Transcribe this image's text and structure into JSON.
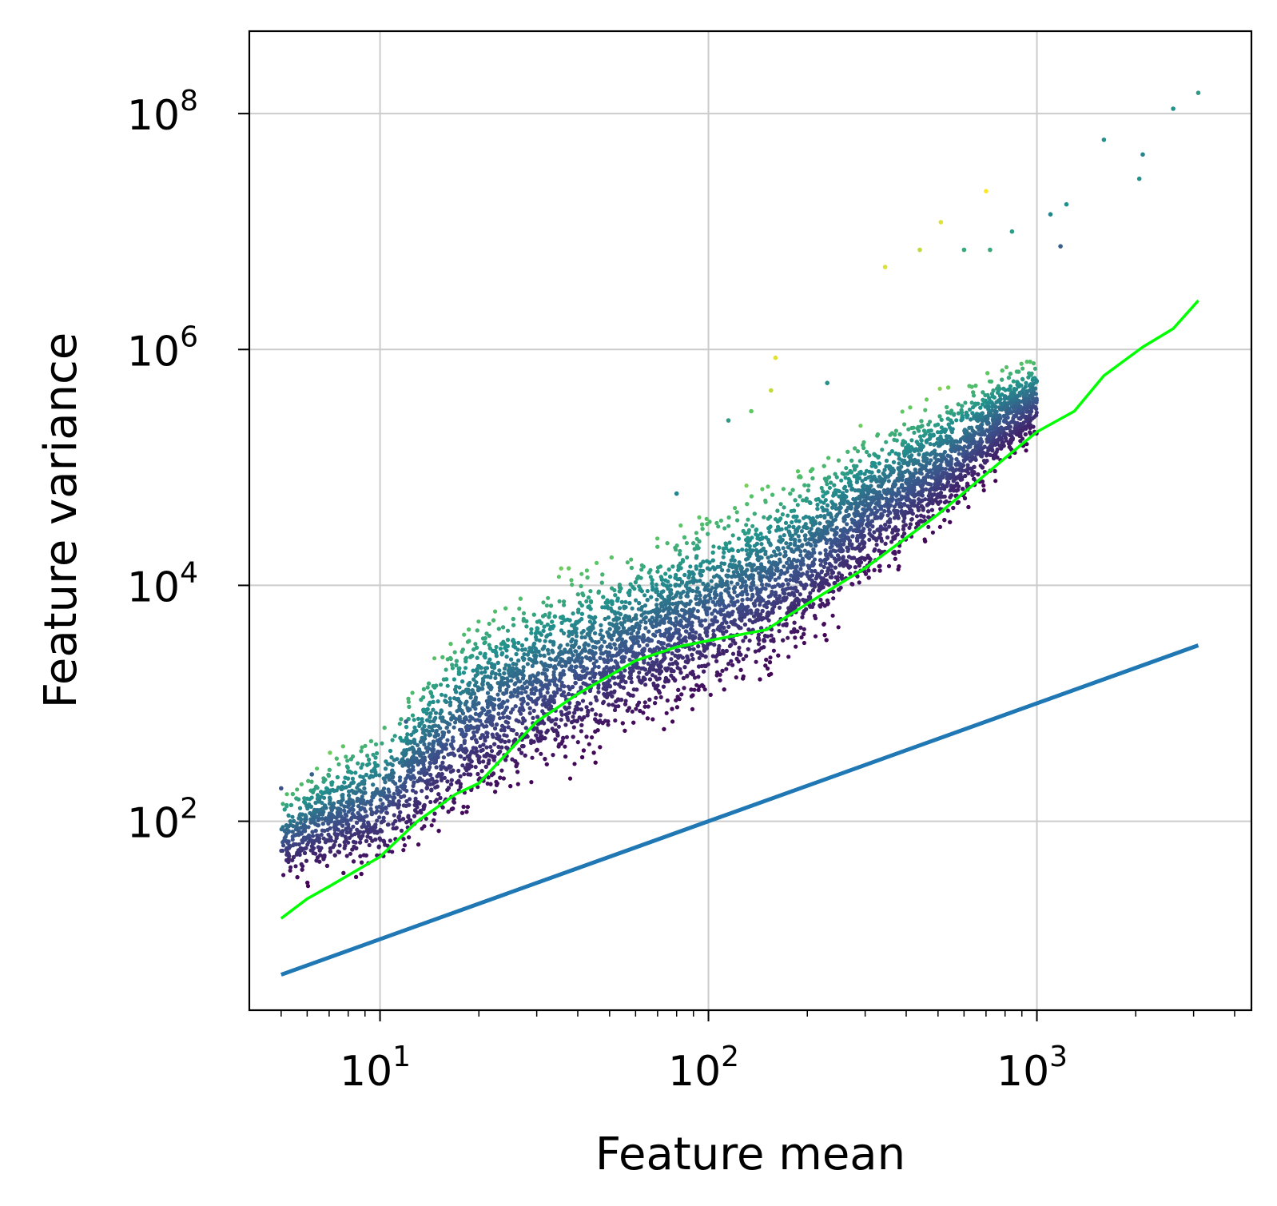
{
  "chart_data": {
    "type": "scatter",
    "title": "",
    "xlabel": "Feature mean",
    "ylabel": "Feature variance",
    "xscale": "log",
    "yscale": "log",
    "xlim": [
      4.0,
      4500
    ],
    "ylim": [
      2.5,
      500000000
    ],
    "grid": true,
    "legend": "none",
    "x_ticks": [
      {
        "base": "10",
        "exp": "1",
        "value": 10
      },
      {
        "base": "10",
        "exp": "2",
        "value": 100
      },
      {
        "base": "10",
        "exp": "3",
        "value": 1000
      }
    ],
    "y_ticks": [
      {
        "base": "10",
        "exp": "2",
        "value": 100
      },
      {
        "base": "10",
        "exp": "4",
        "value": 10000
      },
      {
        "base": "10",
        "exp": "6",
        "value": 1000000
      },
      {
        "base": "10",
        "exp": "8",
        "value": 100000000
      }
    ],
    "colors": {
      "trend": "#00ff00",
      "identity": "#1f77b4",
      "grid": "#cccccc",
      "colormap": [
        "#440154",
        "#3b528b",
        "#21918c",
        "#5ec962",
        "#fde725"
      ]
    },
    "series": [
      {
        "kind": "cloud",
        "colormap": "viridis",
        "density_band": [
          {
            "x": 5,
            "lo": 25,
            "hi": 200
          },
          {
            "x": 8,
            "lo": 25,
            "hi": 600
          },
          {
            "x": 10,
            "lo": 25,
            "hi": 900
          },
          {
            "x": 15,
            "lo": 50,
            "hi": 4000
          },
          {
            "x": 20,
            "lo": 80,
            "hi": 9000
          },
          {
            "x": 30,
            "lo": 150,
            "hi": 15000
          },
          {
            "x": 50,
            "lo": 300,
            "hi": 25000
          },
          {
            "x": 100,
            "lo": 700,
            "hi": 60000
          },
          {
            "x": 150,
            "lo": 1200,
            "hi": 100000
          },
          {
            "x": 200,
            "lo": 2000,
            "hi": 150000
          },
          {
            "x": 300,
            "lo": 6000,
            "hi": 300000
          },
          {
            "x": 500,
            "lo": 20000,
            "hi": 500000
          },
          {
            "x": 800,
            "lo": 80000,
            "hi": 900000
          },
          {
            "x": 1000,
            "lo": 150000,
            "hi": 1000000
          }
        ],
        "outliers": [
          {
            "x": 5,
            "y": 190,
            "c": 0.25
          },
          {
            "x": 6.2,
            "y": 250,
            "c": 0.3
          },
          {
            "x": 12,
            "y": 700,
            "c": 0.3
          },
          {
            "x": 80,
            "y": 60000,
            "c": 0.45
          },
          {
            "x": 115,
            "y": 250000,
            "c": 0.55
          },
          {
            "x": 135,
            "y": 300000,
            "c": 0.75
          },
          {
            "x": 155,
            "y": 450000,
            "c": 0.9
          },
          {
            "x": 160,
            "y": 850000,
            "c": 0.95
          },
          {
            "x": 230,
            "y": 520000,
            "c": 0.5
          },
          {
            "x": 345,
            "y": 5000000,
            "c": 0.95
          },
          {
            "x": 440,
            "y": 7000000,
            "c": 0.9
          },
          {
            "x": 510,
            "y": 12000000,
            "c": 0.95
          },
          {
            "x": 600,
            "y": 7000000,
            "c": 0.6
          },
          {
            "x": 700,
            "y": 22000000,
            "c": 1.0
          },
          {
            "x": 720,
            "y": 7000000,
            "c": 0.6
          },
          {
            "x": 840,
            "y": 10000000,
            "c": 0.55
          },
          {
            "x": 1100,
            "y": 14000000,
            "c": 0.45
          },
          {
            "x": 1230,
            "y": 17000000,
            "c": 0.5
          },
          {
            "x": 1180,
            "y": 7500000,
            "c": 0.3
          },
          {
            "x": 1600,
            "y": 60000000,
            "c": 0.5
          },
          {
            "x": 2050,
            "y": 28000000,
            "c": 0.5
          },
          {
            "x": 2100,
            "y": 45000000,
            "c": 0.45
          },
          {
            "x": 2600,
            "y": 110000000,
            "c": 0.5
          },
          {
            "x": 3100,
            "y": 150000000,
            "c": 0.55
          }
        ]
      },
      {
        "kind": "trend",
        "x": [
          5,
          6,
          7,
          10,
          13,
          17,
          20,
          30,
          40,
          60,
          80,
          100,
          150,
          200,
          300,
          500,
          800,
          1000,
          1300,
          1600,
          2100,
          2600,
          3100
        ],
        "y": [
          15,
          22,
          28,
          50,
          100,
          170,
          210,
          700,
          1200,
          2300,
          3000,
          3400,
          4200,
          7000,
          14000,
          40000,
          120000,
          200000,
          300000,
          600000,
          1050000,
          1500000,
          2600000
        ]
      },
      {
        "kind": "identity",
        "x": [
          5,
          3100
        ],
        "y": [
          5,
          3100
        ]
      }
    ]
  }
}
